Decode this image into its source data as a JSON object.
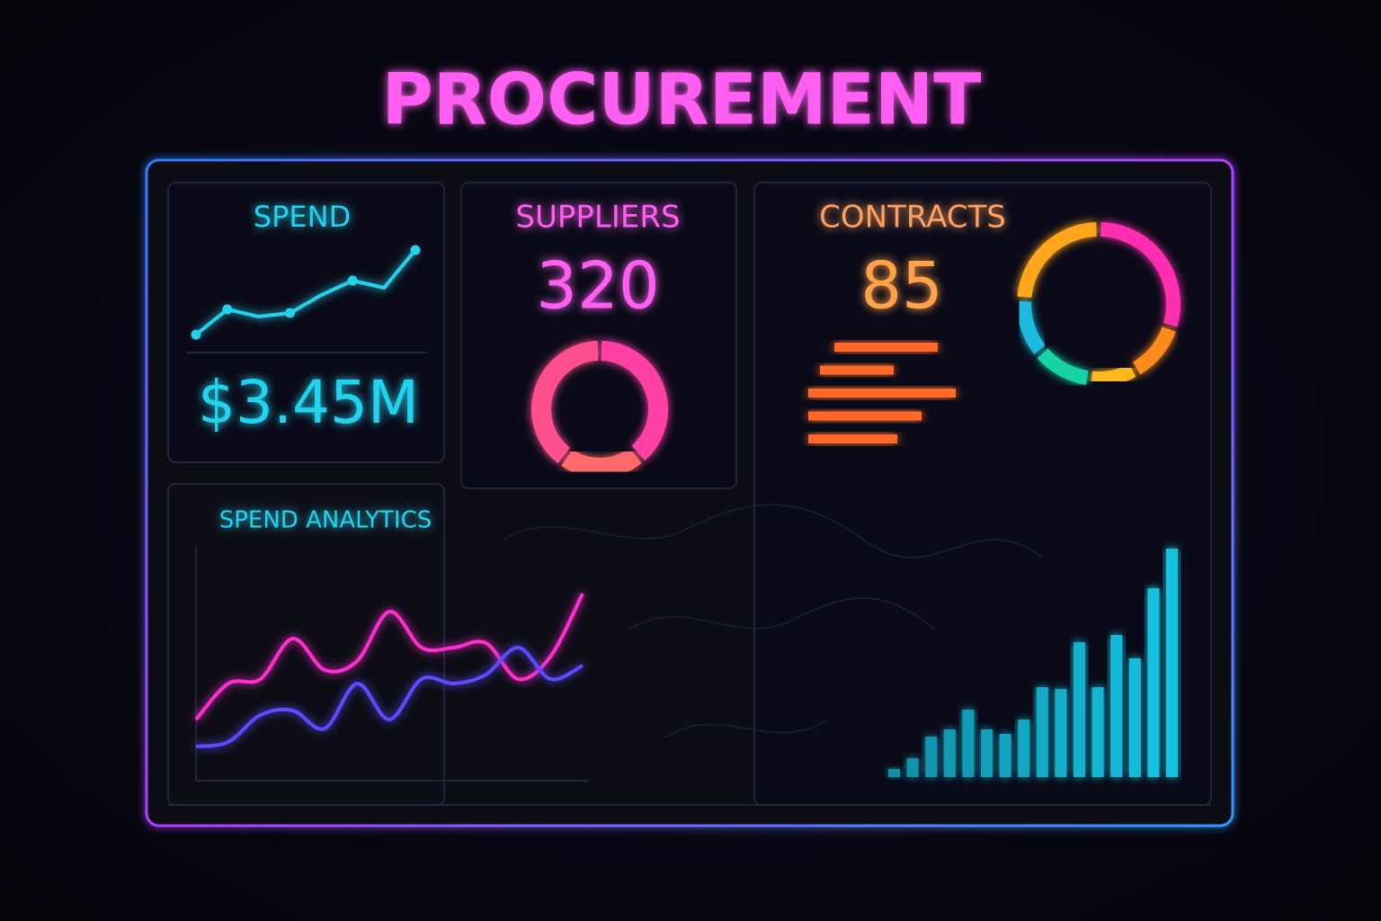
{
  "header": {
    "title": "PROCUREMENT"
  },
  "spend": {
    "label": "SPEND",
    "value": "$3.45M",
    "trend": {
      "type": "line",
      "color": "#22d3ee",
      "ylim": [
        0,
        130
      ],
      "values": [
        28,
        56,
        48,
        52,
        72,
        88,
        80,
        122
      ]
    }
  },
  "suppliers": {
    "label": "SUPPLIERS",
    "value": "320",
    "breakdown": {
      "type": "donut",
      "values": [
        39,
        21,
        40
      ],
      "colors": [
        "#ff3fa4",
        "#ff6a6a",
        "#ff4f8f"
      ]
    }
  },
  "contracts": {
    "label": "CONTRACTS",
    "value": "85",
    "breakdown": {
      "type": "hbar",
      "color": "#ff6a2a",
      "xlim": [
        0,
        170
      ],
      "values": [
        115,
        82,
        164,
        126,
        99
      ]
    },
    "status": {
      "type": "donut",
      "values": [
        30,
        12,
        10,
        12,
        12,
        24
      ],
      "colors": [
        "#ff2fb0",
        "#ff8a1f",
        "#ffb81f",
        "#17d4a8",
        "#1ab8e0",
        "#ffa51f"
      ]
    }
  },
  "analytics": {
    "label": "SPEND ANALYTICS",
    "trend": {
      "type": "smooth-line",
      "ylim": [
        0,
        240
      ],
      "series": [
        {
          "color": "#ff2fd0",
          "values": [
            80,
            120,
            125,
            170,
            135,
            145,
            200,
            160,
            160,
            165,
            125,
            150,
            220
          ]
        },
        {
          "color": "#5b4bff",
          "values": [
            50,
            55,
            85,
            90,
            70,
            120,
            80,
            125,
            120,
            130,
            160,
            125,
            140
          ]
        }
      ]
    },
    "volume": {
      "type": "bar",
      "color": "#19c7e6",
      "ylim": [
        0,
        260
      ],
      "values": [
        9,
        21,
        45,
        53,
        75,
        53,
        48,
        64,
        100,
        98,
        150,
        100,
        158,
        132,
        210,
        254
      ]
    }
  }
}
